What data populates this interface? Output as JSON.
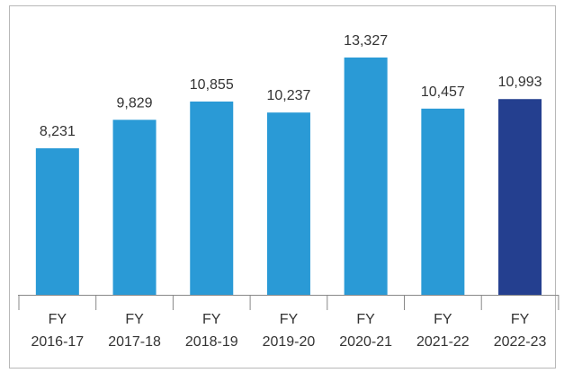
{
  "chart_data": {
    "type": "bar",
    "categories": [
      "FY 2016-17",
      "FY 2017-18",
      "FY 2018-19",
      "FY 2019-20",
      "FY 2020-21",
      "FY 2021-22",
      "FY 2022-23"
    ],
    "values": [
      8231,
      9829,
      10855,
      10237,
      13327,
      10457,
      10993
    ],
    "value_labels": [
      "8,231",
      "9,829",
      "10,855",
      "10,237",
      "13,327",
      "10,457",
      "10,993"
    ],
    "colors": [
      "#2a9ad6",
      "#2a9ad6",
      "#2a9ad6",
      "#2a9ad6",
      "#2a9ad6",
      "#2a9ad6",
      "#243f8f"
    ]
  }
}
